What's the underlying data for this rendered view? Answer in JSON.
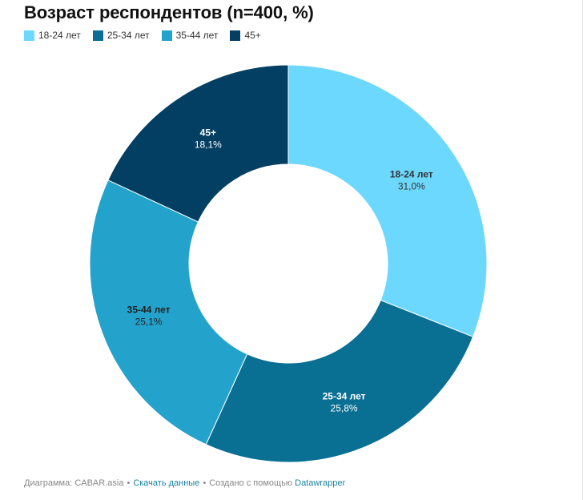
{
  "chart_data": {
    "type": "pie",
    "title": "Возраст респондентов (n=400, %)",
    "categories": [
      "18-24 лет",
      "25-34 лет",
      "35-44 лет",
      "45+"
    ],
    "values": [
      31.0,
      25.8,
      25.1,
      18.1
    ],
    "value_labels": [
      "31,0%",
      "25,8%",
      "25,1%",
      "18,1%"
    ],
    "colors": [
      "#6dd8fd",
      "#096f93",
      "#23a3cb",
      "#033f63"
    ],
    "label_colors": [
      "#333333",
      "#ffffff",
      "#222222",
      "#ffffff"
    ],
    "donut": true,
    "legend_position": "top-left"
  },
  "footer": {
    "source": "Диаграмма: CABAR.asia",
    "separator": "•",
    "download_link": "Скачать данные",
    "made_with": "Создано с помощью",
    "datawrapper_link": "Datawrapper"
  }
}
